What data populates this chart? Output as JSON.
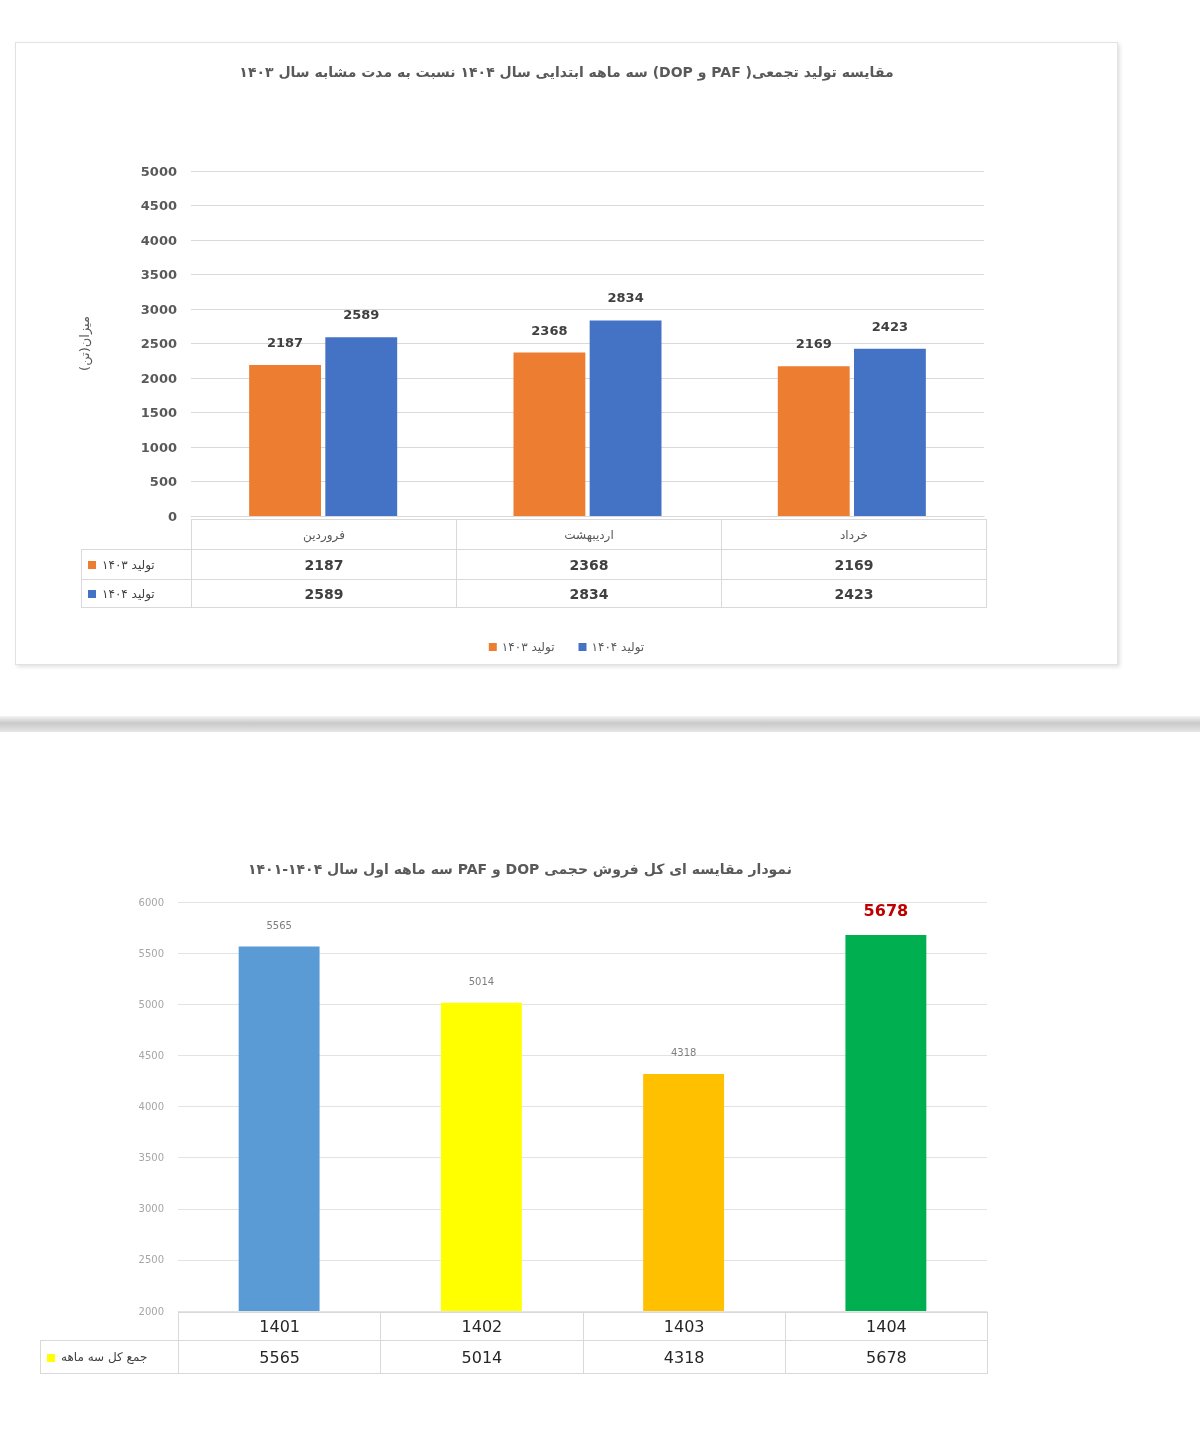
{
  "chart_data": [
    {
      "type": "bar",
      "title": "مقایسه تولید تجمعی( PAF و DOP) سه ماهه ابتدایی سال ۱۴۰۴ نسبت به مدت مشابه سال ۱۴۰۳",
      "ylabel": "میزان(تن)",
      "categories": [
        "فروردین",
        "اردیبهشت",
        "خرداد"
      ],
      "series": [
        {
          "name": "تولید ۱۴۰۳",
          "color": "#ed7d31",
          "values": [
            2187,
            2368,
            2169
          ]
        },
        {
          "name": "تولید ۱۴۰۴",
          "color": "#4472c4",
          "values": [
            2589,
            2834,
            2423
          ]
        }
      ],
      "ylim": [
        0,
        5000
      ],
      "yticks": [
        0,
        500,
        1000,
        1500,
        2000,
        2500,
        3000,
        3500,
        4000,
        4500,
        5000
      ],
      "grid": "y",
      "legend": "bottom",
      "data_labels": true,
      "annotations": [
        {
          "text": "2187",
          "x": "فروردین",
          "y": 2187
        },
        {
          "text": "2589",
          "x": "فروردین",
          "y": 2589
        },
        {
          "text": "2368",
          "x": "اردیبهشت",
          "y": 2368
        },
        {
          "text": "2834",
          "x": "اردیبهشت",
          "y": 2834
        },
        {
          "text": "2169",
          "x": "خرداد",
          "y": 2169
        },
        {
          "text": "2423",
          "x": "خرداد",
          "y": 2423
        }
      ]
    },
    {
      "type": "bar",
      "title": "نمودار مقایسه ای کل فروش حجمی DOP و PAF سه ماهه اول سال ۱۴۰۴-۱۴۰۱",
      "categories": [
        "1401",
        "1402",
        "1403",
        "1404"
      ],
      "series": [
        {
          "name": "جمع کل سه ماهه",
          "values": [
            5565,
            5014,
            4318,
            5678
          ]
        }
      ],
      "colors": [
        "#5b9bd5",
        "#ffff00",
        "#ffc000",
        "#00b050"
      ],
      "ylim": [
        2000,
        6000
      ],
      "yticks": [
        2000,
        2500,
        3000,
        3500,
        4000,
        4500,
        5000,
        5500,
        6000
      ],
      "grid": "y",
      "data_labels": true,
      "annotations": [
        {
          "text": "5565",
          "x": "1401",
          "y": 5565
        },
        {
          "text": "5014",
          "x": "1402",
          "y": 5014
        },
        {
          "text": "4318",
          "x": "1403",
          "y": 4318
        },
        {
          "text": "5678",
          "x": "1404",
          "y": 5678
        }
      ]
    }
  ]
}
